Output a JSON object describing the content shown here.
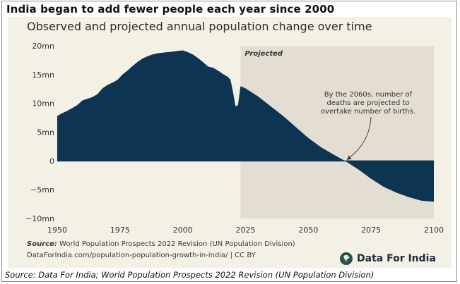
{
  "headline": "India began to add fewer people each year since 2000",
  "footer_source": "Source: Data For India; World Population Prospects 2022 Revision (UN Population Division)",
  "chart_data": {
    "type": "area",
    "title": "Observed and projected annual population change over time",
    "xlabel": "",
    "ylabel": "",
    "xlim": [
      1950,
      2100
    ],
    "ylim": [
      -10,
      20
    ],
    "x_ticks": [
      1950,
      1975,
      2000,
      2025,
      2050,
      2075,
      2100
    ],
    "y_ticks": [
      {
        "value": 20,
        "label": "20mn"
      },
      {
        "value": 15,
        "label": "15mn"
      },
      {
        "value": 10,
        "label": "10mn"
      },
      {
        "value": 5,
        "label": "5mn"
      },
      {
        "value": 0,
        "label": "0"
      },
      {
        "value": -5,
        "label": "−5mn"
      },
      {
        "value": -10,
        "label": "−10mn"
      }
    ],
    "projected_region": {
      "label": "Projected",
      "start": 2023,
      "end": 2100
    },
    "annotation": {
      "text": "By the 2060s, number of deaths are projected to overtake number of births.",
      "lines": [
        "By the 2060s, number of",
        "deaths are projected to",
        "overtake number of births."
      ],
      "points_to": {
        "x": 2065,
        "y": 0
      }
    },
    "colors": {
      "area": "#0d3450",
      "background": "#f3f0e5",
      "projected": "#e4ded2",
      "zero_line": "#0d3450"
    },
    "grid": false,
    "series": [
      {
        "values": [
          [
            1950,
            7.8
          ],
          [
            1952,
            8.3
          ],
          [
            1954,
            8.7
          ],
          [
            1956,
            9.2
          ],
          [
            1958,
            9.7
          ],
          [
            1960,
            10.5
          ],
          [
            1962,
            10.8
          ],
          [
            1964,
            11.1
          ],
          [
            1966,
            11.6
          ],
          [
            1968,
            12.6
          ],
          [
            1970,
            13.2
          ],
          [
            1972,
            13.6
          ],
          [
            1974,
            14.1
          ],
          [
            1976,
            15.0
          ],
          [
            1978,
            15.7
          ],
          [
            1980,
            16.5
          ],
          [
            1982,
            17.2
          ],
          [
            1984,
            17.8
          ],
          [
            1986,
            18.2
          ],
          [
            1988,
            18.5
          ],
          [
            1990,
            18.7
          ],
          [
            1992,
            18.8
          ],
          [
            1994,
            18.9
          ],
          [
            1996,
            19.0
          ],
          [
            1998,
            19.1
          ],
          [
            2000,
            19.2
          ],
          [
            2002,
            18.9
          ],
          [
            2004,
            18.5
          ],
          [
            2006,
            17.9
          ],
          [
            2008,
            17.2
          ],
          [
            2010,
            16.4
          ],
          [
            2012,
            16.2
          ],
          [
            2014,
            15.7
          ],
          [
            2016,
            15.1
          ],
          [
            2018,
            14.6
          ],
          [
            2019,
            14.1
          ],
          [
            2020,
            12.0
          ],
          [
            2021,
            9.5
          ],
          [
            2022,
            9.7
          ],
          [
            2023,
            13.0
          ],
          [
            2025,
            12.6
          ],
          [
            2030,
            11.2
          ],
          [
            2035,
            9.5
          ],
          [
            2040,
            7.8
          ],
          [
            2045,
            5.9
          ],
          [
            2050,
            4.0
          ],
          [
            2055,
            2.4
          ],
          [
            2060,
            1.1
          ],
          [
            2065,
            -0.1
          ],
          [
            2070,
            -1.5
          ],
          [
            2075,
            -3.1
          ],
          [
            2080,
            -4.5
          ],
          [
            2085,
            -5.5
          ],
          [
            2090,
            -6.3
          ],
          [
            2095,
            -6.9
          ],
          [
            2100,
            -7.1
          ]
        ]
      }
    ]
  },
  "chart_sources": {
    "source_label": "Source:",
    "source_text": "World Population Prospects 2022 Revision (UN Population Division)",
    "credit_text": "DataForIndia.com/population-population-growth-in-india/ | CC BY"
  },
  "brand": {
    "name": "Data For India",
    "icon": "india-map-icon"
  }
}
